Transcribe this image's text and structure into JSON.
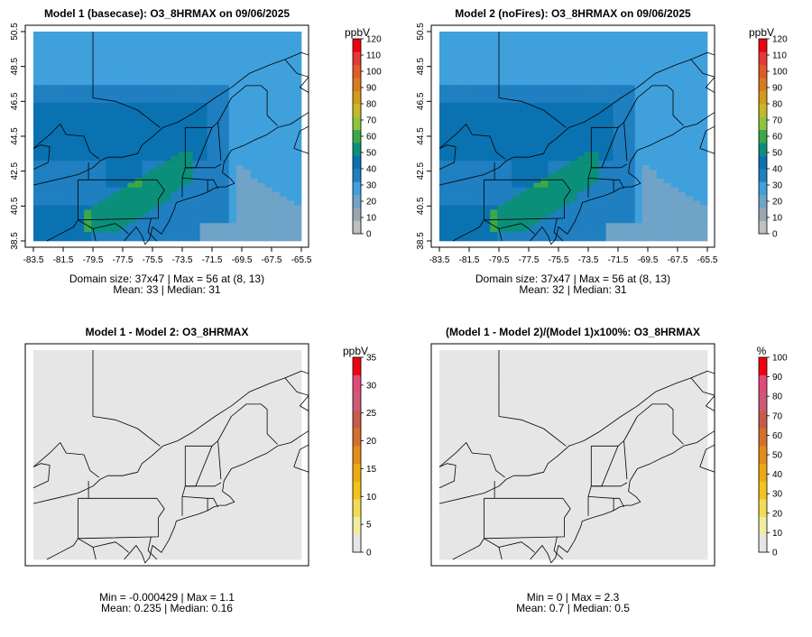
{
  "chart_data": [
    {
      "type": "heatmap",
      "title": "Model 1 (basecase): O3_8HRMAX on 09/06/2025",
      "unit_label": "ppbV",
      "xticks": [
        "-83.5",
        "-81.5",
        "-79.5",
        "-77.5",
        "-75.5",
        "-73.5",
        "-71.5",
        "-69.5",
        "-67.5",
        "-65.5"
      ],
      "yticks": [
        "38.5",
        "40.5",
        "42.5",
        "44.5",
        "46.5",
        "48.5",
        "50.5"
      ],
      "colorbar_ticks": [
        "0",
        "10",
        "20",
        "30",
        "40",
        "50",
        "60",
        "70",
        "80",
        "90",
        "100",
        "110",
        "120"
      ],
      "colorbar_range": [
        0,
        120
      ],
      "palette": [
        "#c0c0c0",
        "#9aa6b0",
        "#6fa3c8",
        "#3fa0dc",
        "#1f7fc0",
        "#0a72b0",
        "#0b8f7a",
        "#3aa84a",
        "#8cc63f",
        "#c7b82a",
        "#d49a1a",
        "#d97a1f",
        "#e05a2a",
        "#e8383a",
        "#f20010"
      ],
      "field": "base",
      "stats": [
        "Domain size: 37x47 | Max = 56 at (8, 13)",
        "Mean: 33 |  Median: 31"
      ]
    },
    {
      "type": "heatmap",
      "title": "Model 2 (noFires): O3_8HRMAX on 09/06/2025",
      "unit_label": "ppbV",
      "xticks": [
        "-83.5",
        "-81.5",
        "-79.5",
        "-77.5",
        "-75.5",
        "-73.5",
        "-71.5",
        "-69.5",
        "-67.5",
        "-65.5"
      ],
      "yticks": [
        "38.5",
        "40.5",
        "42.5",
        "44.5",
        "46.5",
        "48.5",
        "50.5"
      ],
      "colorbar_ticks": [
        "0",
        "10",
        "20",
        "30",
        "40",
        "50",
        "60",
        "70",
        "80",
        "90",
        "100",
        "110",
        "120"
      ],
      "colorbar_range": [
        0,
        120
      ],
      "palette": [
        "#c0c0c0",
        "#9aa6b0",
        "#6fa3c8",
        "#3fa0dc",
        "#1f7fc0",
        "#0a72b0",
        "#0b8f7a",
        "#3aa84a",
        "#8cc63f",
        "#c7b82a",
        "#d49a1a",
        "#d97a1f",
        "#e05a2a",
        "#e8383a",
        "#f20010"
      ],
      "field": "nofire",
      "stats": [
        "Domain size: 37x47 | Max = 56 at (8, 13)",
        "Mean: 32 |  Median: 31"
      ]
    },
    {
      "type": "heatmap",
      "title": "Model 1 - Model 2: O3_8HRMAX",
      "unit_label": "ppbV",
      "xticks": [],
      "yticks": [],
      "colorbar_ticks": [
        "0",
        "5",
        "10",
        "15",
        "20",
        "25",
        "30",
        "35"
      ],
      "colorbar_range": [
        0,
        35
      ],
      "palette": [
        "#e6e6e6",
        "#f1eda0",
        "#f2dc55",
        "#f0c419",
        "#eda915",
        "#e38c17",
        "#d4702a",
        "#c85a4a",
        "#cf5a78",
        "#e0497a",
        "#f20010"
      ],
      "field": "diff",
      "stats": [
        "Min = -0.000429 | Max = 1.1",
        "Mean: 0.235 |  Median: 0.16"
      ]
    },
    {
      "type": "heatmap",
      "title": "(Model 1 - Model 2)/(Model 1)x100%: O3_8HRMAX",
      "unit_label": "%",
      "xticks": [],
      "yticks": [],
      "colorbar_ticks": [
        "0",
        "10",
        "20",
        "30",
        "40",
        "50",
        "60",
        "70",
        "80",
        "90",
        "100"
      ],
      "colorbar_range": [
        0,
        100
      ],
      "palette": [
        "#e6e6e6",
        "#f1eda0",
        "#f2dc55",
        "#f0c419",
        "#eda915",
        "#e38c17",
        "#d4702a",
        "#c85a4a",
        "#cf5a78",
        "#e0497a",
        "#f20010"
      ],
      "field": "pct",
      "stats": [
        "Min = 0 | Max = 2.3",
        "Mean: 0.7 |  Median: 0.5"
      ]
    }
  ]
}
